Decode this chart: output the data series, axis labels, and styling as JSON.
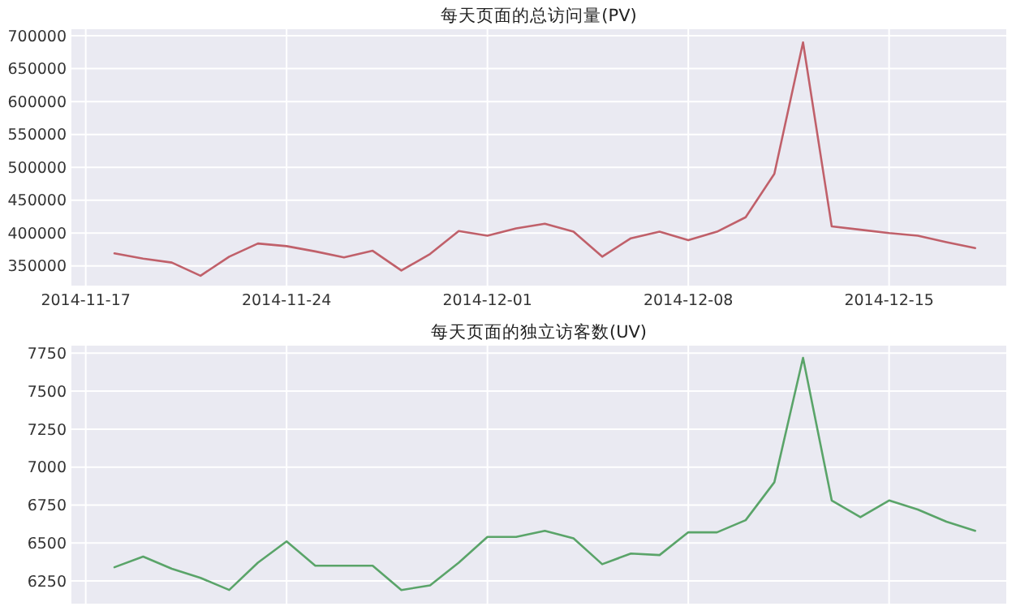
{
  "chart_data": [
    {
      "type": "line",
      "title": "每天页面的总访问量(PV)",
      "x": [
        "2014-11-18",
        "2014-11-19",
        "2014-11-20",
        "2014-11-21",
        "2014-11-22",
        "2014-11-23",
        "2014-11-24",
        "2014-11-25",
        "2014-11-26",
        "2014-11-27",
        "2014-11-28",
        "2014-11-29",
        "2014-11-30",
        "2014-12-01",
        "2014-12-02",
        "2014-12-03",
        "2014-12-04",
        "2014-12-05",
        "2014-12-06",
        "2014-12-07",
        "2014-12-08",
        "2014-12-09",
        "2014-12-10",
        "2014-12-11",
        "2014-12-12",
        "2014-12-13",
        "2014-12-14",
        "2014-12-15",
        "2014-12-16",
        "2014-12-17",
        "2014-12-18"
      ],
      "series": [
        {
          "color": "#c0606a",
          "values": [
            369000,
            361000,
            355000,
            335000,
            364000,
            384000,
            380000,
            372000,
            363000,
            373000,
            343000,
            368000,
            403000,
            396000,
            407000,
            414000,
            402000,
            364000,
            392000,
            402000,
            389000,
            402000,
            424000,
            490000,
            690000,
            410000,
            405000,
            400000,
            396000,
            386000,
            377000
          ]
        }
      ],
      "xlim": [
        "2014-11-16T12:00",
        "2014-12-19T02:00"
      ],
      "xticks": [
        "2014-11-17",
        "2014-11-24",
        "2014-12-01",
        "2014-12-08",
        "2014-12-15"
      ],
      "ylim": [
        320000,
        710000
      ],
      "yticks": [
        350000,
        400000,
        450000,
        500000,
        550000,
        600000,
        650000,
        700000
      ],
      "grid": true
    },
    {
      "type": "line",
      "title": "每天页面的独立访客数(UV)",
      "x": [
        "2014-11-18",
        "2014-11-19",
        "2014-11-20",
        "2014-11-21",
        "2014-11-22",
        "2014-11-23",
        "2014-11-24",
        "2014-11-25",
        "2014-11-26",
        "2014-11-27",
        "2014-11-28",
        "2014-11-29",
        "2014-11-30",
        "2014-12-01",
        "2014-12-02",
        "2014-12-03",
        "2014-12-04",
        "2014-12-05",
        "2014-12-06",
        "2014-12-07",
        "2014-12-08",
        "2014-12-09",
        "2014-12-10",
        "2014-12-11",
        "2014-12-12",
        "2014-12-13",
        "2014-12-14",
        "2014-12-15",
        "2014-12-16",
        "2014-12-17",
        "2014-12-18"
      ],
      "series": [
        {
          "color": "#5aa469",
          "values": [
            6340,
            6410,
            6330,
            6270,
            6190,
            6370,
            6510,
            6350,
            6350,
            6350,
            6190,
            6220,
            6370,
            6540,
            6540,
            6580,
            6530,
            6360,
            6430,
            6420,
            6570,
            6570,
            6650,
            6900,
            7720,
            6780,
            6670,
            6780,
            6720,
            6640,
            6580
          ]
        }
      ],
      "xlim": [
        "2014-11-16T12:00",
        "2014-12-19T02:00"
      ],
      "xticks": [
        "2014-11-17",
        "2014-11-24",
        "2014-12-01",
        "2014-12-08",
        "2014-12-15"
      ],
      "ylim": [
        6100,
        7800
      ],
      "yticks": [
        6250,
        6500,
        6750,
        7000,
        7250,
        7500,
        7750
      ],
      "grid": true,
      "tick_labels": "y"
    }
  ]
}
